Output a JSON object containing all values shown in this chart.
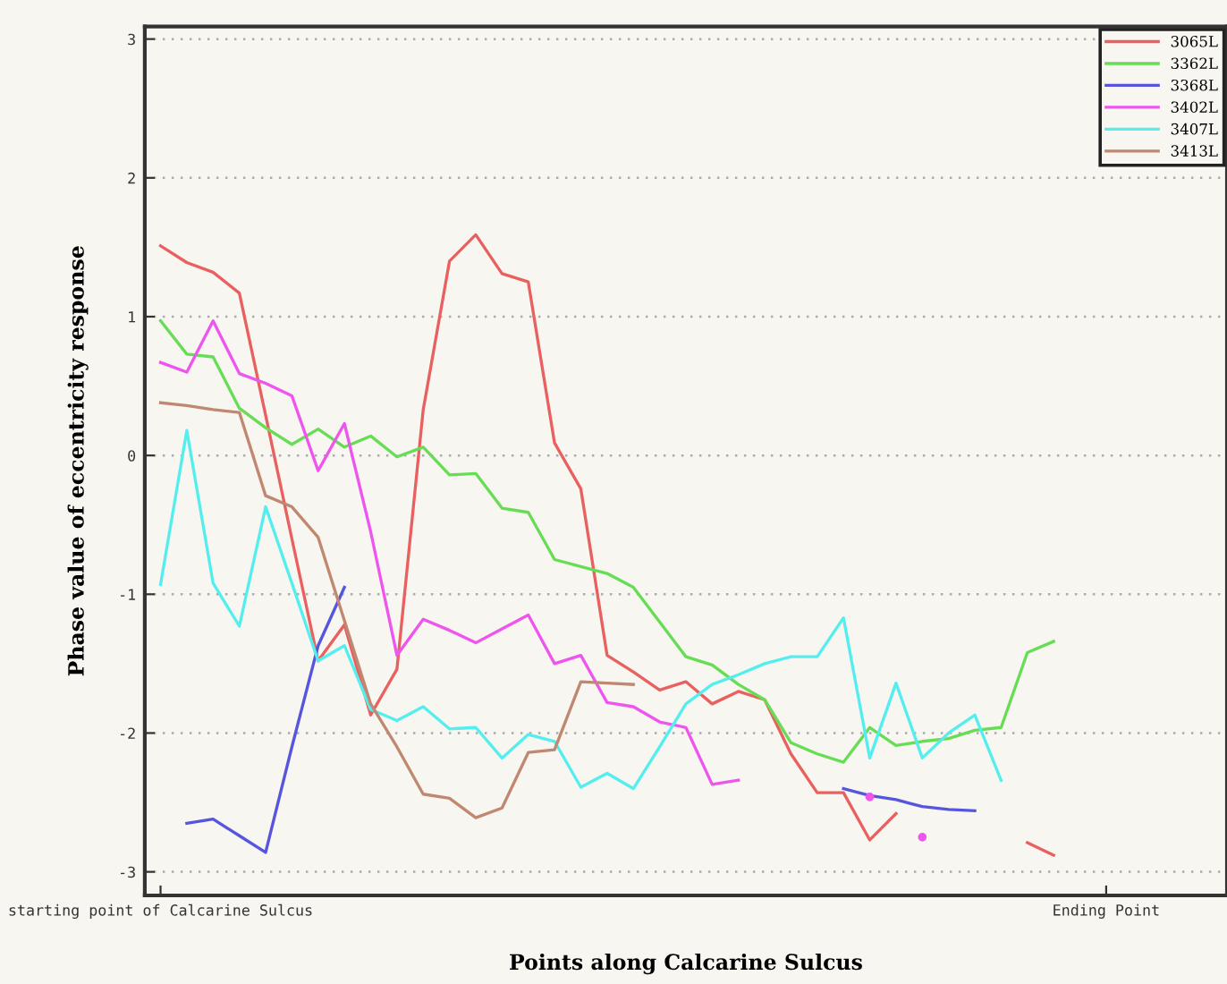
{
  "chart_data": {
    "type": "line",
    "xlabel": "Points along Calcarine Sulcus",
    "ylabel": "Phase value of eccentricity response",
    "categories": [
      "starting point of Calcarine Sulcus",
      null,
      null,
      null,
      null,
      null,
      null,
      null,
      null,
      null,
      null,
      null,
      null,
      null,
      null,
      null,
      null,
      null,
      null,
      null,
      null,
      null,
      null,
      null,
      null,
      null,
      null,
      null,
      null,
      null,
      null,
      null,
      null,
      null,
      null,
      null,
      "Ending Point"
    ],
    "ylim": [
      -3.17,
      3.09
    ],
    "yticks": [
      -3,
      -2,
      -1,
      0,
      1,
      2,
      3
    ],
    "grid": "y",
    "legend": "top right",
    "marker": "none",
    "line_style": "solid",
    "series": [
      {
        "name": "3065L",
        "color": "#e8605f",
        "values": [
          1.51,
          1.39,
          1.32,
          1.17,
          0.29,
          -0.6,
          -1.48,
          -1.22,
          -1.87,
          -1.54,
          0.33,
          1.4,
          1.59,
          1.31,
          1.25,
          0.09,
          -0.24,
          -1.44,
          -1.56,
          -1.69,
          -1.63,
          -1.79,
          -1.7,
          -1.76,
          -2.15,
          -2.43,
          -2.43,
          -2.77,
          -2.58,
          null,
          null,
          null,
          null,
          -2.79,
          -2.88,
          null,
          null
        ]
      },
      {
        "name": "3362L",
        "color": "#66dd55",
        "values": [
          0.97,
          0.73,
          0.71,
          0.34,
          0.2,
          0.08,
          0.19,
          0.06,
          0.14,
          -0.01,
          0.06,
          -0.14,
          -0.13,
          -0.38,
          -0.41,
          -0.75,
          -0.8,
          -0.85,
          -0.95,
          -1.2,
          -1.45,
          -1.51,
          -1.65,
          -1.76,
          -2.07,
          -2.15,
          -2.21,
          -1.96,
          -2.09,
          -2.06,
          -2.04,
          -1.98,
          -1.96,
          -1.42,
          -1.34,
          null,
          null
        ]
      },
      {
        "name": "3368L",
        "color": "#5555dd",
        "values": [
          null,
          -2.65,
          -2.62,
          -2.74,
          -2.86,
          -2.1,
          -1.37,
          -0.95,
          null,
          null,
          null,
          null,
          null,
          null,
          null,
          null,
          null,
          null,
          null,
          null,
          null,
          null,
          null,
          null,
          null,
          null,
          -2.4,
          -2.45,
          -2.48,
          -2.53,
          -2.55,
          -2.56,
          null,
          null,
          null,
          null,
          null
        ]
      },
      {
        "name": "3402L",
        "color": "#ee55ee",
        "values": [
          0.67,
          0.6,
          0.97,
          0.59,
          0.52,
          0.43,
          -0.11,
          0.23,
          -0.55,
          -1.44,
          -1.18,
          -1.26,
          -1.35,
          -1.25,
          -1.15,
          -1.5,
          -1.44,
          -1.78,
          -1.81,
          -1.92,
          -1.96,
          -2.37,
          -2.34,
          null,
          null,
          null,
          null,
          -2.46,
          null,
          -2.75,
          null,
          null,
          null,
          null,
          null,
          null,
          null
        ]
      },
      {
        "name": "3407L",
        "color": "#55eeee",
        "values": [
          -0.93,
          0.18,
          -0.92,
          -1.23,
          -0.37,
          -0.92,
          -1.48,
          -1.37,
          -1.83,
          -1.91,
          -1.81,
          -1.97,
          -1.96,
          -2.18,
          -2.01,
          -2.06,
          -2.39,
          -2.29,
          -2.4,
          -2.1,
          -1.79,
          -1.65,
          -1.58,
          -1.5,
          -1.45,
          -1.45,
          -1.17,
          -2.18,
          -1.64,
          -2.18,
          -2.0,
          -1.87,
          -2.34,
          null,
          null,
          null,
          null
        ]
      },
      {
        "name": "3413L",
        "color": "#c08870",
        "values": [
          0.38,
          0.36,
          0.33,
          0.31,
          -0.29,
          -0.37,
          -0.59,
          -1.19,
          -1.79,
          -2.1,
          -2.44,
          -2.47,
          -2.61,
          -2.54,
          -2.14,
          -2.12,
          -1.63,
          -1.64,
          -1.65,
          null,
          null,
          null,
          null,
          null,
          null,
          null,
          null,
          null,
          null,
          null,
          null,
          null,
          null,
          null,
          null,
          null,
          null
        ]
      }
    ]
  }
}
